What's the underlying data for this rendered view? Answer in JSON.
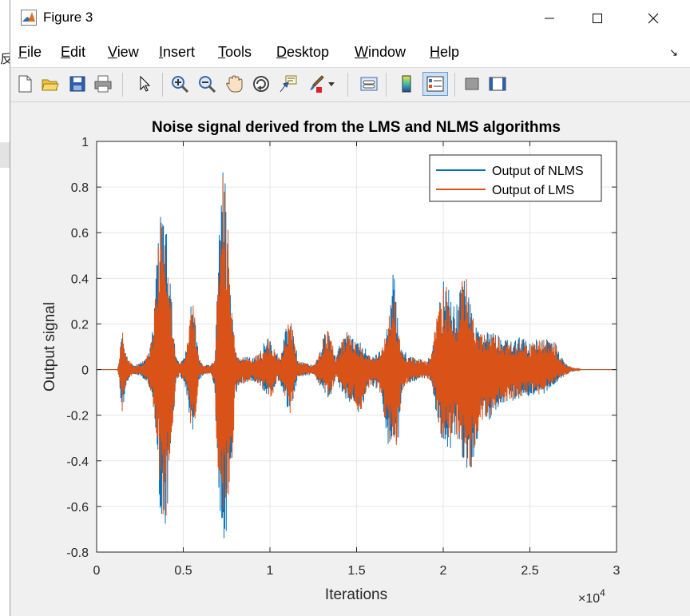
{
  "window": {
    "title": "Figure 3"
  },
  "menu": {
    "items": [
      {
        "key": "file",
        "first": "F",
        "rest": "ile"
      },
      {
        "key": "edit",
        "first": "E",
        "rest": "dit"
      },
      {
        "key": "view",
        "first": "V",
        "rest": "iew"
      },
      {
        "key": "insert",
        "first": "I",
        "rest": "nsert"
      },
      {
        "key": "tools",
        "first": "T",
        "rest": "ools"
      },
      {
        "key": "desktop",
        "first": "D",
        "rest": "esktop"
      },
      {
        "key": "window",
        "first": "W",
        "rest": "indow"
      },
      {
        "key": "help",
        "first": "H",
        "rest": "elp"
      }
    ],
    "dock_arrow": "↘"
  },
  "toolbar": {
    "icons": [
      "new-figure-icon",
      "open-file-icon",
      "save-icon",
      "print-icon",
      "pointer-icon",
      "zoom-in-icon",
      "zoom-out-icon",
      "pan-hand-icon",
      "rotate-3d-icon",
      "data-cursor-icon",
      "brush-icon",
      "brush-dropdown-icon",
      "link-plot-icon",
      "colorbar-icon",
      "legend-icon",
      "hide-plot-tools-icon",
      "show-plot-tools-icon"
    ]
  },
  "background": {
    "glyph": "反"
  },
  "chart_data": {
    "type": "line",
    "title": "Noise signal derived from the LMS and NLMS algorithms",
    "xlabel": "Iterations",
    "ylabel": "Output signal",
    "x_exponent_label": "×10",
    "x_exponent_power": "4",
    "xlim": [
      0,
      3
    ],
    "ylim": [
      -0.8,
      1
    ],
    "xticks": [
      "0",
      "0.5",
      "1",
      "1.5",
      "2",
      "2.5",
      "3"
    ],
    "yticks": [
      "1",
      "0.8",
      "0.6",
      "0.4",
      "0.2",
      "0",
      "-0.2",
      "-0.4",
      "-0.6",
      "-0.8"
    ],
    "grid": true,
    "legend_position": "top-right",
    "series": [
      {
        "name": "Output of NLMS",
        "color": "#0072BD"
      },
      {
        "name": "Output of LMS",
        "color": "#D95319"
      }
    ],
    "envelope": {
      "x_units": "×10^4 iterations",
      "points": [
        [
          0.0,
          0.0,
          0.0
        ],
        [
          0.12,
          0.0,
          0.0
        ],
        [
          0.13,
          0.04,
          -0.04
        ],
        [
          0.14,
          0.15,
          -0.17
        ],
        [
          0.15,
          0.18,
          -0.2
        ],
        [
          0.16,
          0.11,
          -0.12
        ],
        [
          0.18,
          0.05,
          -0.05
        ],
        [
          0.2,
          0.03,
          -0.03
        ],
        [
          0.22,
          0.02,
          -0.02
        ],
        [
          0.25,
          0.03,
          -0.03
        ],
        [
          0.28,
          0.05,
          -0.05
        ],
        [
          0.3,
          0.08,
          -0.08
        ],
        [
          0.32,
          0.15,
          -0.15
        ],
        [
          0.34,
          0.35,
          -0.28
        ],
        [
          0.36,
          0.65,
          -0.5
        ],
        [
          0.37,
          0.82,
          -0.7
        ],
        [
          0.39,
          0.8,
          -0.72
        ],
        [
          0.4,
          0.78,
          -0.7
        ],
        [
          0.41,
          0.6,
          -0.66
        ],
        [
          0.42,
          0.48,
          -0.54
        ],
        [
          0.44,
          0.2,
          -0.3
        ],
        [
          0.46,
          0.05,
          -0.05
        ],
        [
          0.48,
          0.03,
          -0.03
        ],
        [
          0.5,
          0.05,
          -0.05
        ],
        [
          0.51,
          0.07,
          -0.07
        ],
        [
          0.53,
          0.15,
          -0.15
        ],
        [
          0.54,
          0.3,
          -0.28
        ],
        [
          0.55,
          0.4,
          -0.28
        ],
        [
          0.57,
          0.21,
          -0.24
        ],
        [
          0.59,
          0.05,
          -0.05
        ],
        [
          0.62,
          0.02,
          -0.02
        ],
        [
          0.66,
          0.02,
          -0.02
        ],
        [
          0.68,
          0.05,
          -0.08
        ],
        [
          0.7,
          0.4,
          -0.45
        ],
        [
          0.71,
          0.7,
          -0.6
        ],
        [
          0.72,
          0.83,
          -0.75
        ],
        [
          0.73,
          0.93,
          -0.78
        ],
        [
          0.74,
          0.87,
          -0.76
        ],
        [
          0.75,
          0.77,
          -0.7
        ],
        [
          0.76,
          0.65,
          -0.6
        ],
        [
          0.78,
          0.28,
          -0.45
        ],
        [
          0.79,
          0.2,
          -0.3
        ],
        [
          0.8,
          0.1,
          -0.12
        ],
        [
          0.82,
          0.05,
          -0.07
        ],
        [
          0.86,
          0.06,
          -0.06
        ],
        [
          0.9,
          0.05,
          -0.05
        ],
        [
          0.94,
          0.08,
          -0.08
        ],
        [
          0.97,
          0.12,
          -0.1
        ],
        [
          0.99,
          0.15,
          -0.11
        ],
        [
          1.01,
          0.11,
          -0.14
        ],
        [
          1.04,
          0.08,
          -0.05
        ],
        [
          1.06,
          0.05,
          -0.06
        ],
        [
          1.08,
          0.15,
          -0.12
        ],
        [
          1.1,
          0.21,
          -0.17
        ],
        [
          1.12,
          0.28,
          -0.2
        ],
        [
          1.14,
          0.16,
          -0.12
        ],
        [
          1.16,
          0.04,
          -0.03
        ],
        [
          1.2,
          0.03,
          -0.03
        ],
        [
          1.25,
          0.02,
          -0.02
        ],
        [
          1.28,
          0.06,
          -0.06
        ],
        [
          1.31,
          0.15,
          -0.1
        ],
        [
          1.34,
          0.2,
          -0.14
        ],
        [
          1.36,
          0.12,
          -0.1
        ],
        [
          1.38,
          0.05,
          -0.03
        ],
        [
          1.42,
          0.15,
          -0.12
        ],
        [
          1.45,
          0.18,
          -0.13
        ],
        [
          1.48,
          0.14,
          -0.15
        ],
        [
          1.52,
          0.12,
          -0.2
        ],
        [
          1.56,
          0.08,
          -0.09
        ],
        [
          1.6,
          0.06,
          -0.07
        ],
        [
          1.64,
          0.09,
          -0.11
        ],
        [
          1.68,
          0.2,
          -0.32
        ],
        [
          1.71,
          0.45,
          -0.38
        ],
        [
          1.72,
          0.43,
          -0.36
        ],
        [
          1.73,
          0.26,
          -0.39
        ],
        [
          1.74,
          0.2,
          -0.34
        ],
        [
          1.76,
          0.1,
          -0.1
        ],
        [
          1.8,
          0.06,
          -0.06
        ],
        [
          1.85,
          0.05,
          -0.05
        ],
        [
          1.9,
          0.04,
          -0.04
        ],
        [
          1.93,
          0.06,
          -0.05
        ],
        [
          1.96,
          0.25,
          -0.2
        ],
        [
          1.99,
          0.33,
          -0.32
        ],
        [
          2.01,
          0.42,
          -0.38
        ],
        [
          2.03,
          0.38,
          -0.4
        ],
        [
          2.05,
          0.28,
          -0.3
        ],
        [
          2.08,
          0.3,
          -0.33
        ],
        [
          2.11,
          0.4,
          -0.42
        ],
        [
          2.13,
          0.42,
          -0.47
        ],
        [
          2.14,
          0.38,
          -0.5
        ],
        [
          2.16,
          0.3,
          -0.45
        ],
        [
          2.18,
          0.22,
          -0.38
        ],
        [
          2.2,
          0.18,
          -0.3
        ],
        [
          2.23,
          0.16,
          -0.25
        ],
        [
          2.26,
          0.18,
          -0.22
        ],
        [
          2.28,
          0.18,
          -0.22
        ],
        [
          2.31,
          0.16,
          -0.18
        ],
        [
          2.35,
          0.14,
          -0.15
        ],
        [
          2.4,
          0.13,
          -0.14
        ],
        [
          2.45,
          0.14,
          -0.13
        ],
        [
          2.5,
          0.12,
          -0.11
        ],
        [
          2.55,
          0.15,
          -0.12
        ],
        [
          2.58,
          0.14,
          -0.11
        ],
        [
          2.61,
          0.13,
          -0.08
        ],
        [
          2.65,
          0.12,
          -0.06
        ],
        [
          2.67,
          0.08,
          -0.04
        ],
        [
          2.7,
          0.03,
          -0.03
        ],
        [
          2.74,
          0.01,
          -0.01
        ],
        [
          2.8,
          0.0,
          0.0
        ]
      ]
    }
  }
}
